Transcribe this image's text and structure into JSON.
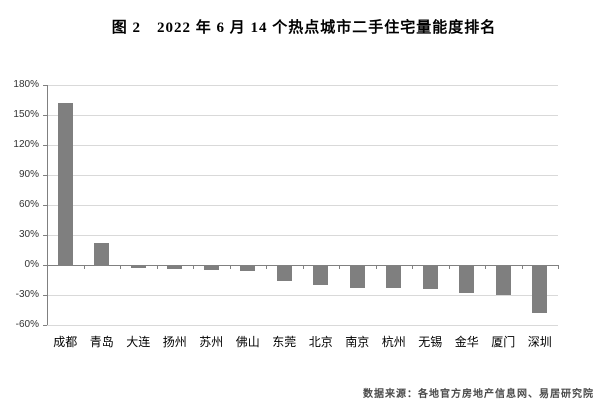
{
  "title": "图 2　2022 年 6 月 14 个热点城市二手住宅量能度排名",
  "footer": {
    "source": "数据来源：各地官方房地产信息网、易居研究院"
  },
  "chart_data": {
    "type": "bar",
    "title": "图 2　2022 年 6 月 14 个热点城市二手住宅量能度排名",
    "categories": [
      "成都",
      "青岛",
      "大连",
      "扬州",
      "苏州",
      "佛山",
      "东莞",
      "北京",
      "南京",
      "杭州",
      "无锡",
      "金华",
      "厦门",
      "深圳"
    ],
    "values": [
      162,
      22,
      -2,
      -3,
      -4,
      -5,
      -15,
      -19,
      -22,
      -22,
      -23,
      -27,
      -29,
      -47
    ],
    "unit": "%",
    "xlabel": "",
    "ylabel": "",
    "ylim": [
      -60,
      180
    ],
    "ytick_step": 30,
    "ytick_labels": [
      "180%",
      "150%",
      "120%",
      "90%",
      "60%",
      "30%",
      "0%",
      "-30%",
      "-60%"
    ],
    "grid": true,
    "legend": null,
    "colors": {
      "bar": "#7f7f7f",
      "gridline": "#d9d9d9",
      "axis": "#808080",
      "zero_line": "#808080",
      "y_label": "#333333",
      "x_label": "#000000"
    }
  }
}
